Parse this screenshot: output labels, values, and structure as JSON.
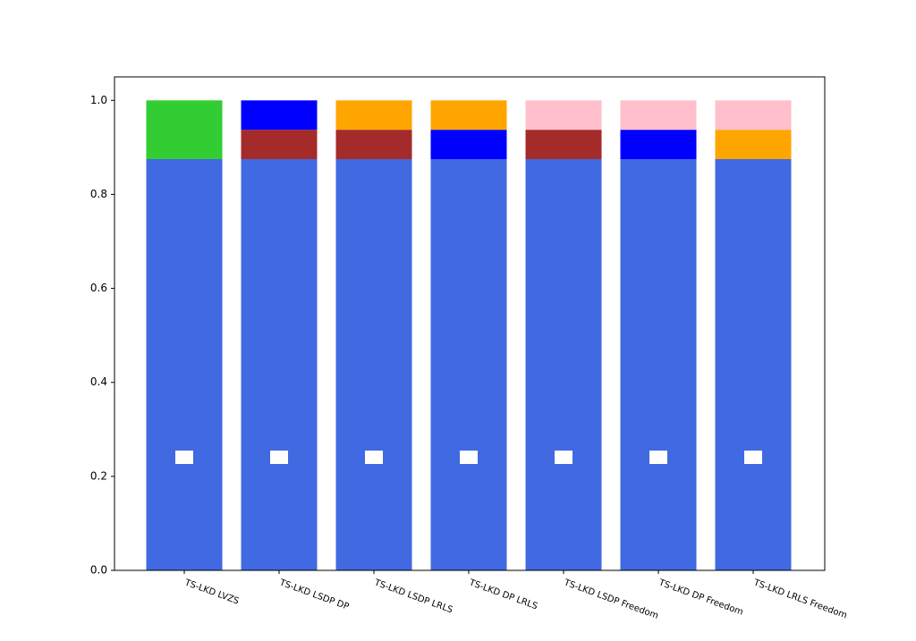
{
  "chart_data": {
    "type": "stacked_bar",
    "categories": [
      "TS-LKD LVZS",
      "TS-LKD LSDP DP",
      "TS-LKD LSDP LRLS",
      "TS-LKD DP LRLS",
      "TS-LKD LSDP Freedom",
      "TS-LKD DP Freedom",
      "TS-LKD LRLS Freedom"
    ],
    "series": [
      {
        "color": "#4169e1",
        "values": [
          0.875,
          0.875,
          0.875,
          0.875,
          0.875,
          0.875,
          0.875
        ]
      },
      {
        "color": "#32cd32",
        "values": [
          0.125,
          0,
          0,
          0,
          0,
          0,
          0
        ]
      },
      {
        "color": "#a52a2a",
        "values": [
          0,
          0.0625,
          0.0625,
          0,
          0.0625,
          0,
          0
        ]
      },
      {
        "color": "#0000ff",
        "values": [
          0,
          0.0625,
          0,
          0.0625,
          0,
          0.0625,
          0
        ]
      },
      {
        "color": "#ffa500",
        "values": [
          0,
          0,
          0.0625,
          0.0625,
          0,
          0,
          0.0625
        ]
      },
      {
        "color": "#ffc0cb",
        "values": [
          0,
          0,
          0,
          0,
          0.0625,
          0.0625,
          0.0625
        ]
      }
    ],
    "ylim": [
      0,
      1.05
    ],
    "yticks": [
      {
        "value": 0,
        "label": "0.0"
      },
      {
        "value": 0.2,
        "label": "0.2"
      },
      {
        "value": 0.4,
        "label": "0.4"
      },
      {
        "value": 0.6,
        "label": "0.6"
      },
      {
        "value": 0.8,
        "label": "0.8"
      },
      {
        "value": 1,
        "label": "1.0"
      }
    ]
  }
}
